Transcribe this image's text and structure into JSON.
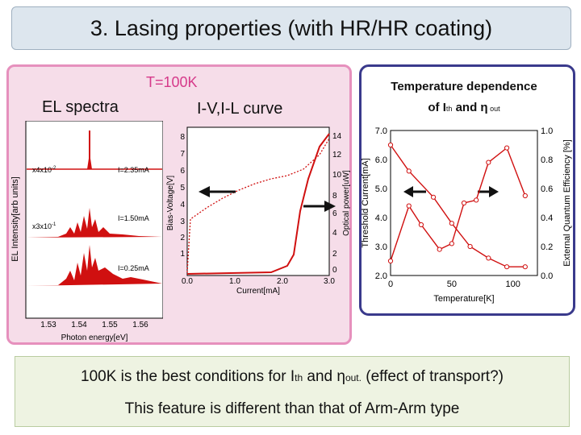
{
  "title": "3. Lasing properties (with HR/HR coating)",
  "left": {
    "temperature": "T=100K",
    "el_label": "EL spectra",
    "iv_label": "I-V,I-L curve"
  },
  "el_chart": {
    "ylabel": "EL Intensity[arb units]",
    "xlabel": "Photon energy[eV]",
    "ticks": [
      "1.53",
      "1.54",
      "1.55",
      "1.56"
    ],
    "curves": [
      {
        "scale": "x4x10",
        "exp": "-2",
        "current": "I=2.35mA"
      },
      {
        "scale": "x3x10",
        "exp": "-1",
        "current": "I=1.50mA"
      },
      {
        "scale": "",
        "exp": "",
        "current": "I=0.25mA"
      }
    ]
  },
  "iv_chart": {
    "xlabel": "Current[mA]",
    "ylabel_left": "Bias-Voltage[V]",
    "ylabel_right": "Optical power[uW]",
    "xticks": [
      "0.0",
      "1.0",
      "2.0",
      "3.0"
    ],
    "yticks_left": [
      "1",
      "2",
      "3",
      "4",
      "5",
      "6",
      "7",
      "8"
    ],
    "yticks_right": [
      "0",
      "2",
      "4",
      "6",
      "8",
      "10",
      "12",
      "14"
    ]
  },
  "right": {
    "title_line1": "Temperature dependence",
    "title_of": "of I",
    "title_th": "th",
    "title_and": " and ",
    "title_eta": "η",
    "title_out": " out"
  },
  "chart_data": {
    "type": "line",
    "title": "Temperature dependence of Ith and ηout",
    "xlabel": "Temperature[K]",
    "ylabel": "Threshold Current[mA]",
    "ylabel_right": "External Quantum Efficiency [%]",
    "xlim": [
      0,
      120
    ],
    "ylim": [
      2.0,
      7.0
    ],
    "ylim_right": [
      0.0,
      1.0
    ],
    "xticks": [
      "0",
      "50",
      "100"
    ],
    "yticks_left": [
      "2.0",
      "3.0",
      "4.0",
      "5.0",
      "6.0",
      "7.0"
    ],
    "yticks_right": [
      "0.0",
      "0.2",
      "0.4",
      "0.6",
      "0.8",
      "1.0"
    ],
    "series": [
      {
        "name": "Threshold Current",
        "axis": "left",
        "x": [
          0,
          15,
          35,
          50,
          65,
          80,
          95,
          110
        ],
        "y": [
          6.5,
          5.6,
          4.7,
          3.8,
          3.0,
          2.6,
          2.3,
          2.3
        ]
      },
      {
        "name": "External Quantum Efficiency",
        "axis": "right",
        "x": [
          0,
          15,
          25,
          40,
          50,
          60,
          70,
          80,
          95,
          110
        ],
        "y": [
          0.1,
          0.48,
          0.35,
          0.18,
          0.22,
          0.5,
          0.52,
          0.78,
          0.88,
          0.55
        ]
      }
    ]
  },
  "conclusion": {
    "l1a": "100K is the best conditions for I",
    "l1b": "th",
    "l1c": " and η",
    "l1d": "out.",
    "l1e": " (effect of transport?)",
    "line2": "This feature is different than that of Arm-Arm type"
  }
}
